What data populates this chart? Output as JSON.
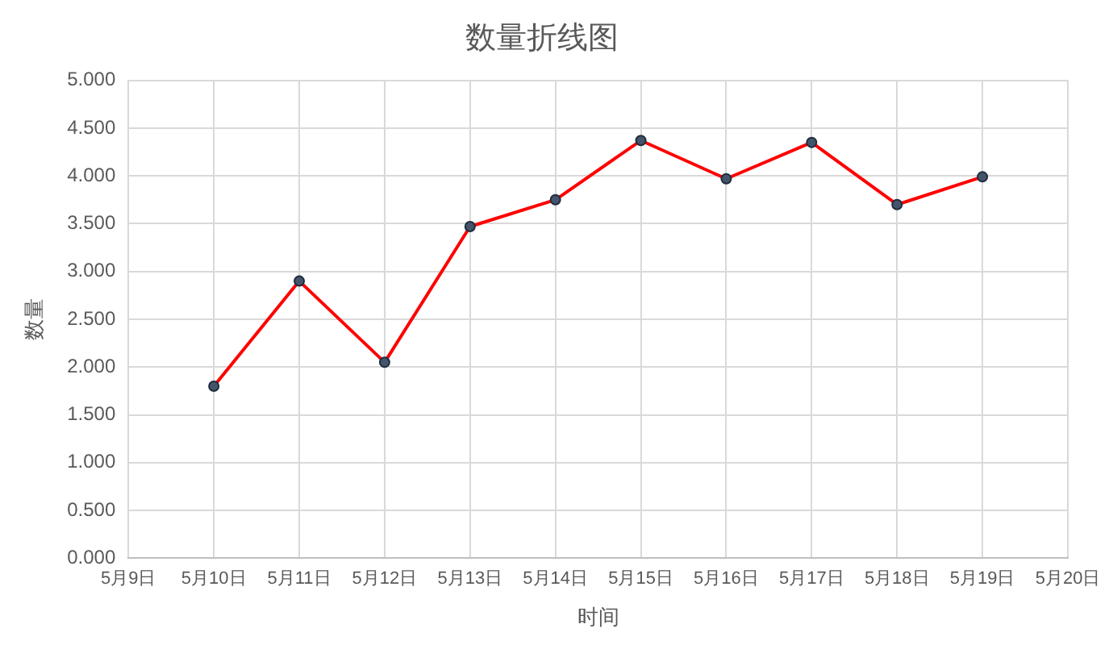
{
  "chart_data": {
    "type": "line",
    "title": "数量折线图",
    "xlabel": "时间",
    "ylabel": "数量",
    "categories": [
      "5月9日",
      "5月10日",
      "5月11日",
      "5月12日",
      "5月13日",
      "5月14日",
      "5月15日",
      "5月16日",
      "5月17日",
      "5月18日",
      "5月19日",
      "5月20日"
    ],
    "series": [
      {
        "color": "#ff0000",
        "values": [
          null,
          1.8,
          2.9,
          2.05,
          3.47,
          3.75,
          4.37,
          3.97,
          4.35,
          3.7,
          3.99,
          null
        ]
      }
    ],
    "ylim": [
      0,
      5
    ],
    "yticks": [
      {
        "value": 0,
        "label": "0.000"
      },
      {
        "value": 0.5,
        "label": "0.500"
      },
      {
        "value": 1,
        "label": "1.000"
      },
      {
        "value": 1.5,
        "label": "1.500"
      },
      {
        "value": 2,
        "label": "2.000"
      },
      {
        "value": 2.5,
        "label": "2.500"
      },
      {
        "value": 3,
        "label": "3.000"
      },
      {
        "value": 3.5,
        "label": "3.500"
      },
      {
        "value": 4,
        "label": "4.000"
      },
      {
        "value": 4.5,
        "label": "4.500"
      },
      {
        "value": 5,
        "label": "5.000"
      }
    ],
    "grid": true,
    "legend": false,
    "marker": "circle",
    "line_style": "solid"
  }
}
